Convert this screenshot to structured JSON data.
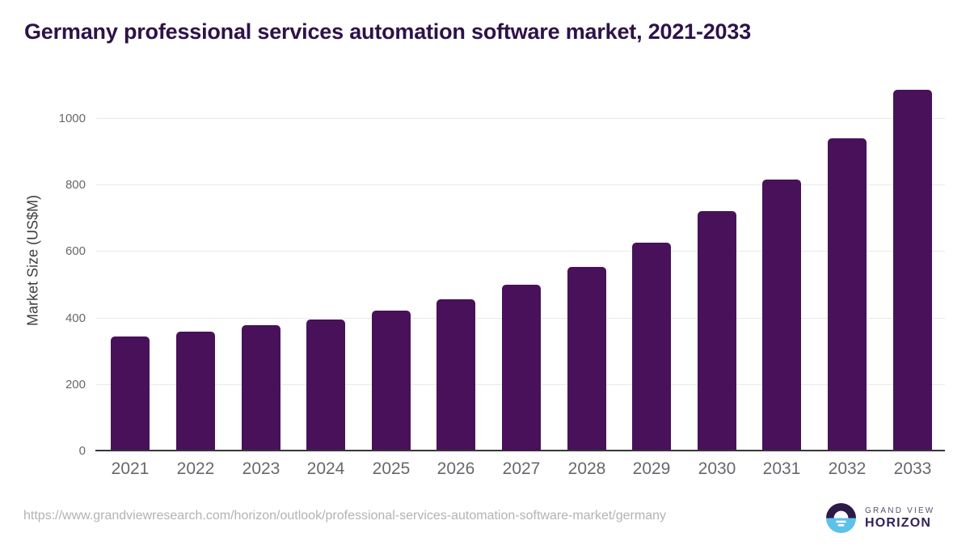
{
  "page": {
    "title": "Germany professional services automation software market, 2021-2033"
  },
  "chart_data": {
    "type": "bar",
    "title": "Germany professional services automation software market, 2021-2033",
    "categories": [
      "2021",
      "2022",
      "2023",
      "2024",
      "2025",
      "2026",
      "2027",
      "2028",
      "2029",
      "2030",
      "2031",
      "2032",
      "2033"
    ],
    "values": [
      342,
      357,
      376,
      395,
      420,
      455,
      500,
      553,
      625,
      720,
      816,
      938,
      1085
    ],
    "xlabel": "",
    "ylabel": "Market Size (US$M)",
    "ylim": [
      0,
      1112
    ],
    "yticks": [
      0,
      200,
      400,
      600,
      800,
      1000
    ],
    "grid": true,
    "legend": false,
    "bar_color": "#481159"
  },
  "footer": {
    "source_url": "https://www.grandviewresearch.com/horizon/outlook/professional-services-automation-software-market/germany",
    "logo": {
      "icon": "grandview-horizon-sun-icon",
      "brand_top": "GRAND VIEW",
      "brand_bottom": "HORIZON",
      "icon_top_color": "#2d1a47",
      "icon_bottom_color": "#5ec1ea"
    }
  },
  "colors": {
    "title": "#2e1248",
    "bar": "#481159",
    "grid_line": "#e9e9e9",
    "axis_line": "#36363c",
    "tick_label": "#66686c",
    "axis_title": "#3f3f3f",
    "url_text": "#b3b3b3",
    "logo_text_top": "#56506a",
    "logo_text_bottom": "#32215a"
  }
}
